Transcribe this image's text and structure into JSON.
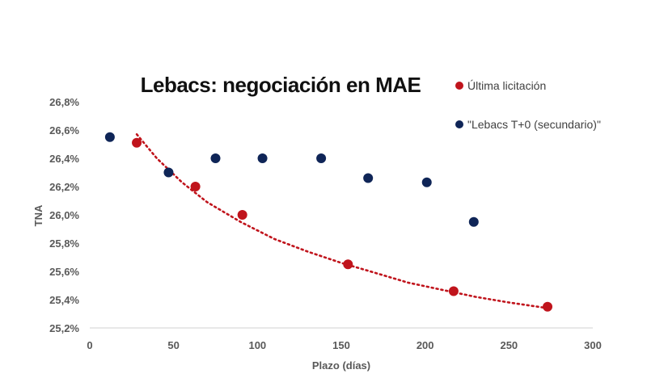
{
  "chart_data": {
    "type": "scatter",
    "title": "Lebacs: negociación en MAE",
    "xlabel": "Plazo (días)",
    "ylabel": "TNA",
    "xlim": [
      0,
      300
    ],
    "ylim": [
      25.2,
      26.8
    ],
    "x_ticks": [
      0,
      50,
      100,
      150,
      200,
      250,
      300
    ],
    "y_ticks": [
      "26,8%",
      "26,6%",
      "26,4%",
      "26,2%",
      "26,0%",
      "25,8%",
      "25,6%",
      "25,4%",
      "25,2%"
    ],
    "legend_position": "top-right",
    "series": [
      {
        "name": "Última licitación",
        "color": "#c0141c",
        "x": [
          28,
          63,
          91,
          154,
          217,
          273
        ],
        "y": [
          26.51,
          26.2,
          26.0,
          25.65,
          25.46,
          25.35
        ],
        "trendline": {
          "style": "dotted",
          "x": [
            28,
            40,
            55,
            70,
            90,
            110,
            130,
            150,
            170,
            190,
            210,
            230,
            250,
            273
          ],
          "y": [
            26.57,
            26.4,
            26.23,
            26.09,
            25.95,
            25.83,
            25.74,
            25.66,
            25.59,
            25.52,
            25.47,
            25.42,
            25.38,
            25.34
          ]
        }
      },
      {
        "name": "\"Lebacs T+0 (secundario)\"",
        "color": "#0f2557",
        "x": [
          12,
          47,
          75,
          103,
          138,
          166,
          201,
          229
        ],
        "y": [
          26.55,
          26.3,
          26.4,
          26.4,
          26.4,
          26.26,
          26.23,
          25.95
        ]
      }
    ]
  }
}
